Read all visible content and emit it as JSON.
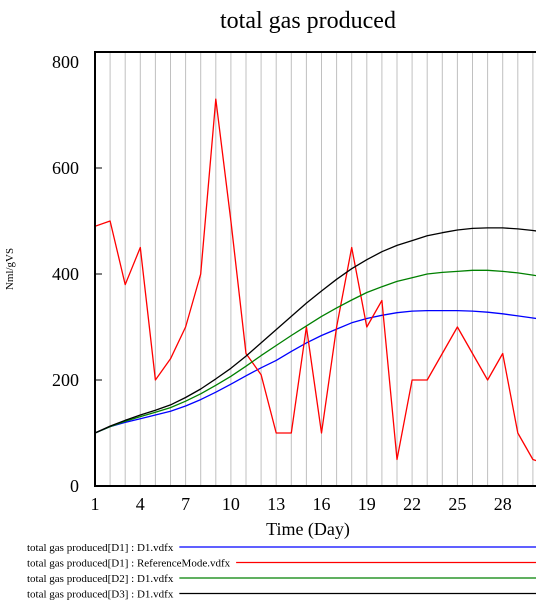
{
  "chart_data": {
    "type": "line",
    "title": "total gas produced",
    "xlabel": "Time (Day)",
    "ylabel": "Nml/gVS",
    "xlim": [
      1,
      31
    ],
    "ylim": [
      0,
      800
    ],
    "x_ticks": [
      1,
      4,
      7,
      10,
      13,
      16,
      19,
      22,
      25,
      28
    ],
    "y_ticks": [
      0,
      200,
      400,
      600,
      800
    ],
    "grid": "vertical lines at every day",
    "legend_position": "bottom",
    "series": [
      {
        "name": "total gas produced[D1] : D1.vdfx",
        "color": "#0000ff",
        "x": [
          1,
          2,
          3,
          4,
          5,
          6,
          7,
          8,
          9,
          10,
          11,
          12,
          13,
          14,
          15,
          16,
          17,
          18,
          19,
          20,
          21,
          22,
          23,
          24,
          25,
          26,
          27,
          28,
          29,
          30,
          31
        ],
        "y": [
          100,
          112,
          120,
          127,
          134,
          141,
          151,
          163,
          177,
          192,
          208,
          223,
          237,
          254,
          270,
          284,
          296,
          308,
          316,
          322,
          327,
          330,
          331,
          331,
          331,
          330,
          328,
          325,
          321,
          317,
          313
        ]
      },
      {
        "name": "total gas produced[D1] : ReferenceMode.vdfx",
        "color": "#ff0000",
        "x": [
          1,
          2,
          3,
          4,
          5,
          6,
          7,
          8,
          9,
          10,
          11,
          12,
          13,
          14,
          15,
          16,
          17,
          18,
          19,
          20,
          21,
          22,
          23,
          24,
          25,
          26,
          27,
          28,
          29,
          30,
          31
        ],
        "y": [
          490,
          500,
          380,
          450,
          200,
          240,
          300,
          400,
          730,
          500,
          250,
          210,
          100,
          100,
          300,
          100,
          300,
          450,
          300,
          350,
          50,
          200,
          200,
          250,
          300,
          250,
          200,
          250,
          100,
          50,
          40
        ]
      },
      {
        "name": "total gas produced[D2] : D1.vdfx",
        "color": "#008000",
        "x": [
          1,
          2,
          3,
          4,
          5,
          6,
          7,
          8,
          9,
          10,
          11,
          12,
          13,
          14,
          15,
          16,
          17,
          18,
          19,
          20,
          21,
          22,
          23,
          24,
          25,
          26,
          27,
          28,
          29,
          30,
          31
        ],
        "y": [
          100,
          112,
          122,
          131,
          139,
          148,
          160,
          174,
          190,
          207,
          226,
          246,
          265,
          284,
          302,
          320,
          336,
          351,
          365,
          376,
          386,
          393,
          400,
          403,
          405,
          407,
          407,
          405,
          402,
          398,
          393
        ]
      },
      {
        "name": "total gas produced[D3] : D1.vdfx",
        "color": "#000000",
        "x": [
          1,
          2,
          3,
          4,
          5,
          6,
          7,
          8,
          9,
          10,
          11,
          12,
          13,
          14,
          15,
          16,
          17,
          18,
          19,
          20,
          21,
          22,
          23,
          24,
          25,
          26,
          27,
          28,
          29,
          30,
          31
        ],
        "y": [
          100,
          113,
          124,
          134,
          143,
          153,
          167,
          183,
          202,
          222,
          245,
          270,
          295,
          320,
          345,
          368,
          390,
          410,
          427,
          442,
          454,
          463,
          472,
          478,
          483,
          486,
          487,
          487,
          485,
          482,
          478
        ]
      }
    ]
  }
}
